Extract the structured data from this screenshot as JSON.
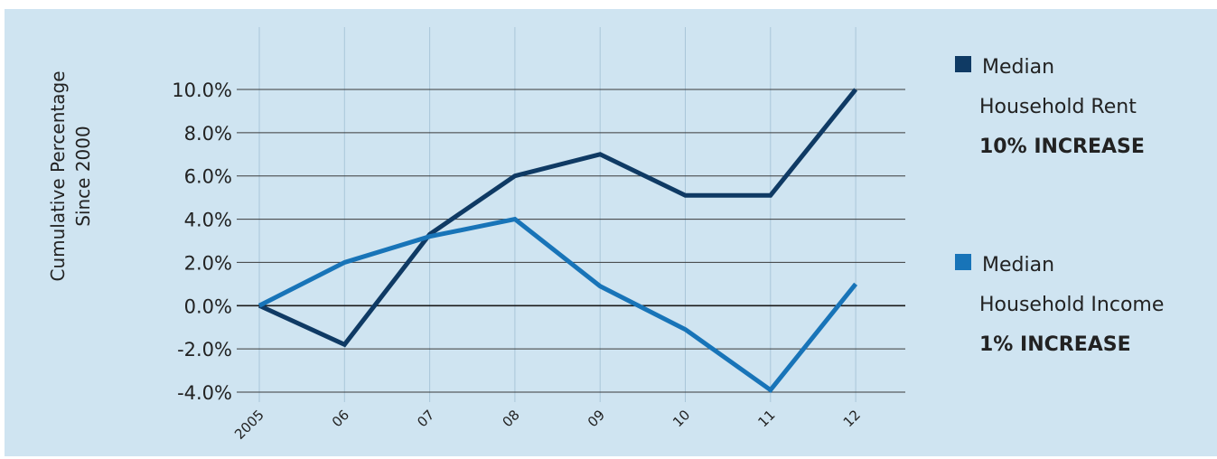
{
  "chart_data": {
    "type": "line",
    "x": [
      "2005",
      "06",
      "07",
      "08",
      "09",
      "10",
      "11",
      "12"
    ],
    "ylabel_lines": [
      "Cumulative Percentage",
      "Since 2000"
    ],
    "yticks": [
      -4.0,
      -2.0,
      0.0,
      2.0,
      4.0,
      6.0,
      8.0,
      10.0
    ],
    "ytick_labels": [
      "-4.0%",
      "-2.0%",
      "0.0%",
      "2.0%",
      "4.0%",
      "6.0%",
      "8.0%",
      "10.0%"
    ],
    "ylim": [
      -4.0,
      10.0
    ],
    "grid": true,
    "legend_position": "right",
    "series": [
      {
        "name_lines": [
          "Median",
          "Household Rent"
        ],
        "note": "10% INCREASE",
        "color": "#0f3a64",
        "values": [
          0,
          -1.8,
          3.3,
          6.0,
          7.0,
          5.1,
          5.1,
          10.0
        ]
      },
      {
        "name_lines": [
          "Median",
          "Household Income"
        ],
        "note": "1% INCREASE",
        "color": "#1874b8",
        "values": [
          0,
          2.0,
          3.2,
          4.0,
          0.9,
          -1.1,
          -3.9,
          1.0
        ]
      }
    ]
  }
}
